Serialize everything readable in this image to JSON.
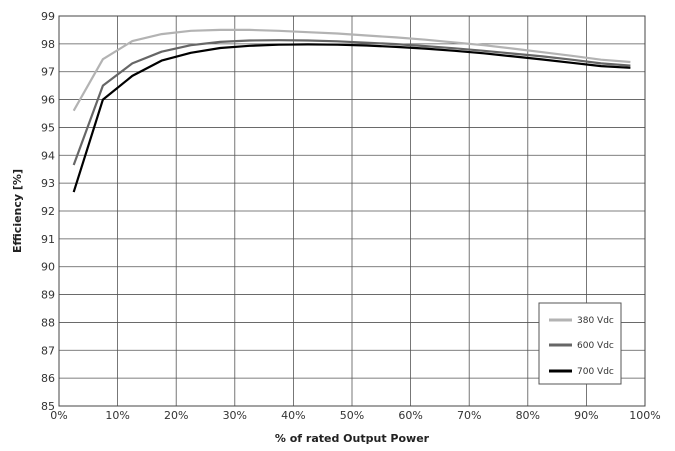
{
  "chart_data": {
    "type": "line",
    "xlabel": "% of rated Output Power",
    "ylabel": "Efficiency [%]",
    "xlim": [
      0,
      100
    ],
    "ylim": [
      85,
      99
    ],
    "x_ticks": [
      "0%",
      "10%",
      "20%",
      "30%",
      "40%",
      "50%",
      "60%",
      "70%",
      "80%",
      "90%",
      "100%"
    ],
    "y_ticks": [
      "85",
      "86",
      "87",
      "88",
      "89",
      "90",
      "91",
      "92",
      "93",
      "94",
      "95",
      "96",
      "97",
      "98",
      "99"
    ],
    "grid": true,
    "legend_position": "bottom-right",
    "series": [
      {
        "name": "380 Vdc",
        "color": "#b3b3b3",
        "x": [
          2.5,
          7.5,
          12.5,
          17.5,
          22.5,
          27.5,
          32.5,
          37.5,
          42.5,
          47.5,
          52.5,
          57.5,
          62.5,
          67.5,
          72.5,
          77.5,
          82.5,
          87.5,
          92.5,
          97.5
        ],
        "values": [
          95.6,
          97.45,
          98.1,
          98.35,
          98.47,
          98.5,
          98.5,
          98.47,
          98.42,
          98.37,
          98.3,
          98.23,
          98.15,
          98.05,
          97.95,
          97.83,
          97.7,
          97.57,
          97.43,
          97.35
        ]
      },
      {
        "name": "600 Vdc",
        "color": "#666666",
        "x": [
          2.5,
          7.5,
          12.5,
          17.5,
          22.5,
          27.5,
          32.5,
          37.5,
          42.5,
          47.5,
          52.5,
          57.5,
          62.5,
          67.5,
          72.5,
          77.5,
          82.5,
          87.5,
          92.5,
          97.5
        ],
        "values": [
          93.65,
          96.5,
          97.3,
          97.72,
          97.95,
          98.07,
          98.12,
          98.13,
          98.12,
          98.09,
          98.04,
          97.99,
          97.92,
          97.84,
          97.75,
          97.65,
          97.55,
          97.43,
          97.3,
          97.22
        ]
      },
      {
        "name": "700 Vdc",
        "color": "#000000",
        "x": [
          2.5,
          7.5,
          12.5,
          17.5,
          22.5,
          27.5,
          32.5,
          37.5,
          42.5,
          47.5,
          52.5,
          57.5,
          62.5,
          67.5,
          72.5,
          77.5,
          82.5,
          87.5,
          92.5,
          97.5
        ],
        "values": [
          92.68,
          96.0,
          96.85,
          97.4,
          97.68,
          97.85,
          97.93,
          97.97,
          97.98,
          97.97,
          97.94,
          97.89,
          97.83,
          97.75,
          97.66,
          97.55,
          97.44,
          97.32,
          97.2,
          97.14
        ]
      }
    ]
  }
}
